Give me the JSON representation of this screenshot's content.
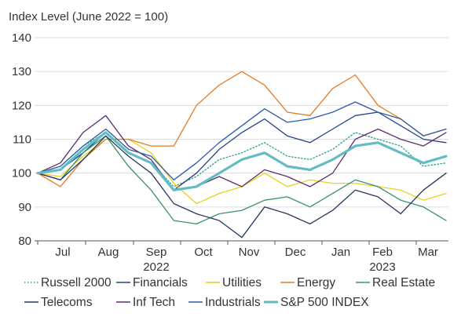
{
  "chart_data": {
    "type": "line",
    "title": "Index Level (June 2022 = 100)",
    "xlabel": "",
    "ylabel": "",
    "ylim": [
      80,
      140
    ],
    "yticks": [
      80,
      90,
      100,
      110,
      120,
      130,
      140
    ],
    "grid": "horizontal",
    "legend_position": "bottom",
    "x_month_labels": [
      "Jul",
      "Aug",
      "Sep",
      "Oct",
      "Nov",
      "Dec",
      "Jan",
      "Feb",
      "Mar"
    ],
    "x_year_labels": [
      {
        "label": "2022",
        "under": "Sep"
      },
      {
        "label": "2023",
        "under": "Feb"
      }
    ],
    "x": [
      "Jun 30",
      "Jul 15",
      "Jul 31",
      "Aug 15",
      "Aug 31",
      "Sep 15",
      "Sep 30",
      "Oct 15",
      "Oct 31",
      "Nov 15",
      "Nov 30",
      "Dec 15",
      "Dec 31",
      "Jan 15",
      "Jan 31",
      "Feb 15",
      "Feb 28",
      "Mar 15",
      "Mar 24"
    ],
    "series": [
      {
        "name": "Russell 2000",
        "color": "#2a9d8f",
        "style": "dotted",
        "width": 1.3,
        "values": [
          100,
          102,
          108,
          112,
          106,
          103,
          96,
          99,
          104,
          106,
          109,
          105,
          104,
          107,
          112,
          110,
          108,
          102,
          103
        ]
      },
      {
        "name": "Financials",
        "color": "#22418a",
        "style": "solid",
        "width": 1.3,
        "values": [
          100,
          101,
          106,
          112,
          106,
          103,
          95,
          100,
          107,
          112,
          116,
          111,
          109,
          113,
          117,
          118,
          114,
          110,
          109
        ]
      },
      {
        "name": "Utilities",
        "color": "#e6d31c",
        "style": "solid",
        "width": 1.3,
        "values": [
          100,
          99,
          105,
          110,
          110,
          106,
          97,
          91,
          94,
          96,
          100,
          96,
          98,
          97,
          97,
          96,
          95,
          92,
          94
        ]
      },
      {
        "name": "Energy",
        "color": "#e67a22",
        "style": "solid",
        "width": 1.3,
        "values": [
          100,
          96,
          104,
          110,
          110,
          108,
          108,
          120,
          126,
          130,
          126,
          118,
          117,
          125,
          129,
          120,
          116,
          111,
          113
        ]
      },
      {
        "name": "Real Estate",
        "color": "#3a8f6e",
        "style": "solid",
        "width": 1.3,
        "values": [
          100,
          98,
          106,
          111,
          102,
          95,
          86,
          85,
          88,
          89,
          92,
          93,
          90,
          94,
          98,
          96,
          92,
          90,
          86
        ]
      },
      {
        "name": "Telecoms",
        "color": "#26365c",
        "style": "solid",
        "width": 1.3,
        "values": [
          100,
          98,
          104,
          111,
          105,
          100,
          91,
          88,
          86,
          81,
          90,
          88,
          85,
          89,
          95,
          93,
          88,
          95,
          100
        ]
      },
      {
        "name": "Inf Tech",
        "color": "#5a2d6e",
        "style": "solid",
        "width": 1.3,
        "values": [
          100,
          103,
          112,
          117,
          108,
          104,
          95,
          96,
          99,
          96,
          101,
          99,
          96,
          100,
          110,
          113,
          110,
          108,
          112
        ]
      },
      {
        "name": "Industrials",
        "color": "#2b5aa8",
        "style": "solid",
        "width": 1.3,
        "values": [
          100,
          102,
          108,
          113,
          107,
          105,
          98,
          103,
          109,
          114,
          119,
          115,
          116,
          118,
          121,
          118,
          116,
          111,
          113
        ]
      },
      {
        "name": "S&P 500 INDEX",
        "color": "#63bcc2",
        "style": "solid",
        "width": 3.2,
        "values": [
          100,
          101,
          107,
          112,
          106,
          103,
          95,
          96,
          100,
          104,
          106,
          102,
          101,
          104,
          108,
          109,
          106,
          103,
          105
        ]
      }
    ]
  }
}
